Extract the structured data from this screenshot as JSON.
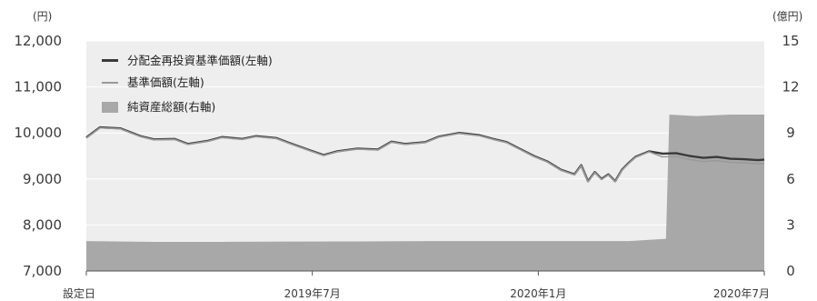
{
  "chart_data": {
    "type": "line",
    "left_axis_unit": "(円)",
    "right_axis_unit": "(億円)",
    "x_tick_labels": [
      "設定日",
      "2019年7月",
      "2020年1月",
      "2020年7月"
    ],
    "left_ticks": [
      "12,000",
      "11,000",
      "10,000",
      "9,000",
      "8,000",
      "7,000"
    ],
    "right_ticks": [
      "15",
      "12",
      "9",
      "6",
      "3",
      "0"
    ],
    "ylim_left": [
      7000,
      12000
    ],
    "ylim_right": [
      0,
      15
    ],
    "x_domain": [
      0,
      1
    ],
    "grid": true,
    "legend_position": "top-left",
    "series": [
      {
        "name": "分配金再投資基準価額(左軸)",
        "axis": "left",
        "style": "line",
        "color": "#3a3a3a",
        "x": [
          0.0,
          0.02,
          0.05,
          0.08,
          0.1,
          0.13,
          0.15,
          0.18,
          0.2,
          0.23,
          0.25,
          0.28,
          0.3,
          0.33,
          0.35,
          0.37,
          0.4,
          0.43,
          0.45,
          0.47,
          0.5,
          0.52,
          0.55,
          0.58,
          0.6,
          0.62,
          0.64,
          0.66,
          0.68,
          0.7,
          0.72,
          0.73,
          0.74,
          0.75,
          0.76,
          0.77,
          0.78,
          0.79,
          0.8,
          0.81,
          0.83,
          0.85,
          0.87,
          0.89,
          0.91,
          0.93,
          0.95,
          0.97,
          0.99,
          1.0
        ],
        "values": [
          9900,
          10120,
          10100,
          9930,
          9860,
          9870,
          9760,
          9830,
          9910,
          9870,
          9930,
          9890,
          9780,
          9620,
          9520,
          9600,
          9660,
          9640,
          9810,
          9760,
          9800,
          9920,
          10000,
          9950,
          9870,
          9800,
          9650,
          9500,
          9380,
          9200,
          9100,
          9300,
          8950,
          9150,
          9000,
          9100,
          8950,
          9200,
          9350,
          9480,
          9600,
          9550,
          9560,
          9500,
          9460,
          9480,
          9440,
          9430,
          9410,
          9420
        ]
      },
      {
        "name": "基準価額(左軸)",
        "axis": "left",
        "style": "line",
        "color": "#9a9a9a",
        "x": [
          0.0,
          0.02,
          0.05,
          0.08,
          0.1,
          0.13,
          0.15,
          0.18,
          0.2,
          0.23,
          0.25,
          0.28,
          0.3,
          0.33,
          0.35,
          0.37,
          0.4,
          0.43,
          0.45,
          0.47,
          0.5,
          0.52,
          0.55,
          0.58,
          0.6,
          0.62,
          0.64,
          0.66,
          0.68,
          0.7,
          0.72,
          0.73,
          0.74,
          0.75,
          0.76,
          0.77,
          0.78,
          0.79,
          0.8,
          0.81,
          0.83,
          0.85,
          0.87,
          0.89,
          0.91,
          0.93,
          0.95,
          0.97,
          0.99,
          1.0
        ],
        "values": [
          9890,
          10110,
          10090,
          9920,
          9850,
          9860,
          9750,
          9820,
          9900,
          9860,
          9920,
          9880,
          9770,
          9610,
          9510,
          9590,
          9650,
          9630,
          9800,
          9750,
          9790,
          9910,
          9990,
          9940,
          9860,
          9790,
          9640,
          9490,
          9370,
          9190,
          9090,
          9290,
          8940,
          9140,
          8990,
          9090,
          8940,
          9190,
          9340,
          9470,
          9590,
          9480,
          9490,
          9420,
          9380,
          9400,
          9360,
          9350,
          9330,
          9340
        ]
      },
      {
        "name": "純資産総額(右軸)",
        "axis": "right",
        "style": "area",
        "color": "#a8a8a8",
        "x": [
          0.0,
          0.1,
          0.2,
          0.3,
          0.4,
          0.5,
          0.6,
          0.7,
          0.8,
          0.855,
          0.86,
          0.9,
          0.95,
          1.0
        ],
        "values": [
          1.95,
          1.9,
          1.9,
          1.92,
          1.93,
          1.95,
          1.95,
          1.95,
          1.95,
          2.1,
          10.2,
          10.1,
          10.2,
          10.2
        ]
      }
    ]
  }
}
